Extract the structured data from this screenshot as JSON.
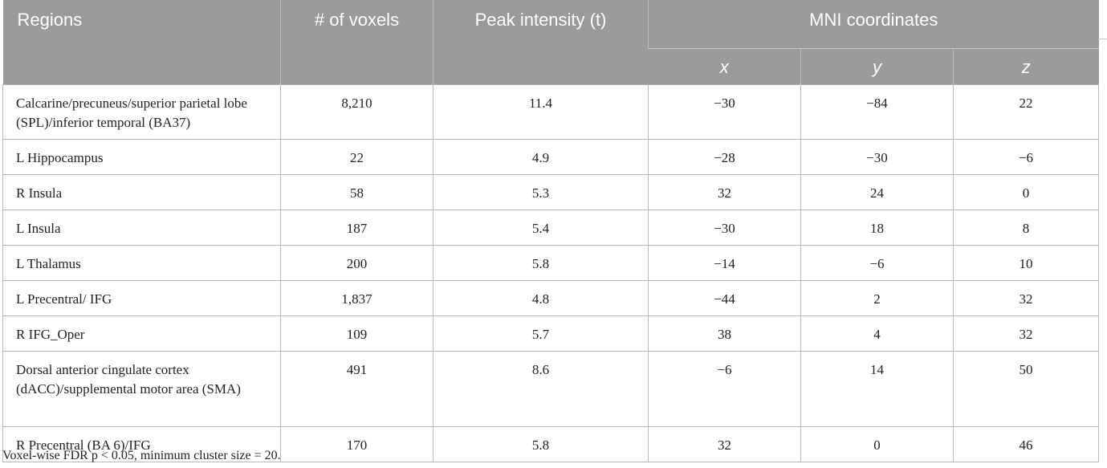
{
  "table": {
    "headers": {
      "regions": "Regions",
      "voxels": "# of voxels",
      "peak": "Peak intensity (t)",
      "mni": "MNI coordinates",
      "x": "x",
      "y": "y",
      "z": "z"
    },
    "rows": [
      {
        "region": "Calcarine/precuneus/superior parietal lobe (SPL)/inferior temporal (BA37)",
        "voxels": "8,210",
        "peak": "11.4",
        "x": "−30",
        "y": "−84",
        "z": "22"
      },
      {
        "region": "L Hippocampus",
        "voxels": "22",
        "peak": "4.9",
        "x": "−28",
        "y": "−30",
        "z": "−6"
      },
      {
        "region": "R Insula",
        "voxels": "58",
        "peak": "5.3",
        "x": "32",
        "y": "24",
        "z": "0"
      },
      {
        "region": "L Insula",
        "voxels": "187",
        "peak": "5.4",
        "x": "−30",
        "y": "18",
        "z": "8"
      },
      {
        "region": "L Thalamus",
        "voxels": "200",
        "peak": "5.8",
        "x": "−14",
        "y": "−6",
        "z": "10"
      },
      {
        "region": "L Precentral/ IFG",
        "voxels": "1,837",
        "peak": "4.8",
        "x": "−44",
        "y": "2",
        "z": "32"
      },
      {
        "region": "R IFG_Oper",
        "voxels": "109",
        "peak": "5.7",
        "x": "38",
        "y": "4",
        "z": "32"
      },
      {
        "region": "Dorsal anterior cingulate cortex (dACC)/supplemental motor area (SMA)",
        "voxels": "491",
        "peak": "8.6",
        "x": "−6",
        "y": "14",
        "z": "50"
      },
      {
        "region": "R Precentral (BA 6)/IFG",
        "voxels": "170",
        "peak": "5.8",
        "x": "32",
        "y": "0",
        "z": "46"
      }
    ]
  },
  "footnote": "Voxel-wise FDR p < 0.05, minimum cluster size = 20."
}
